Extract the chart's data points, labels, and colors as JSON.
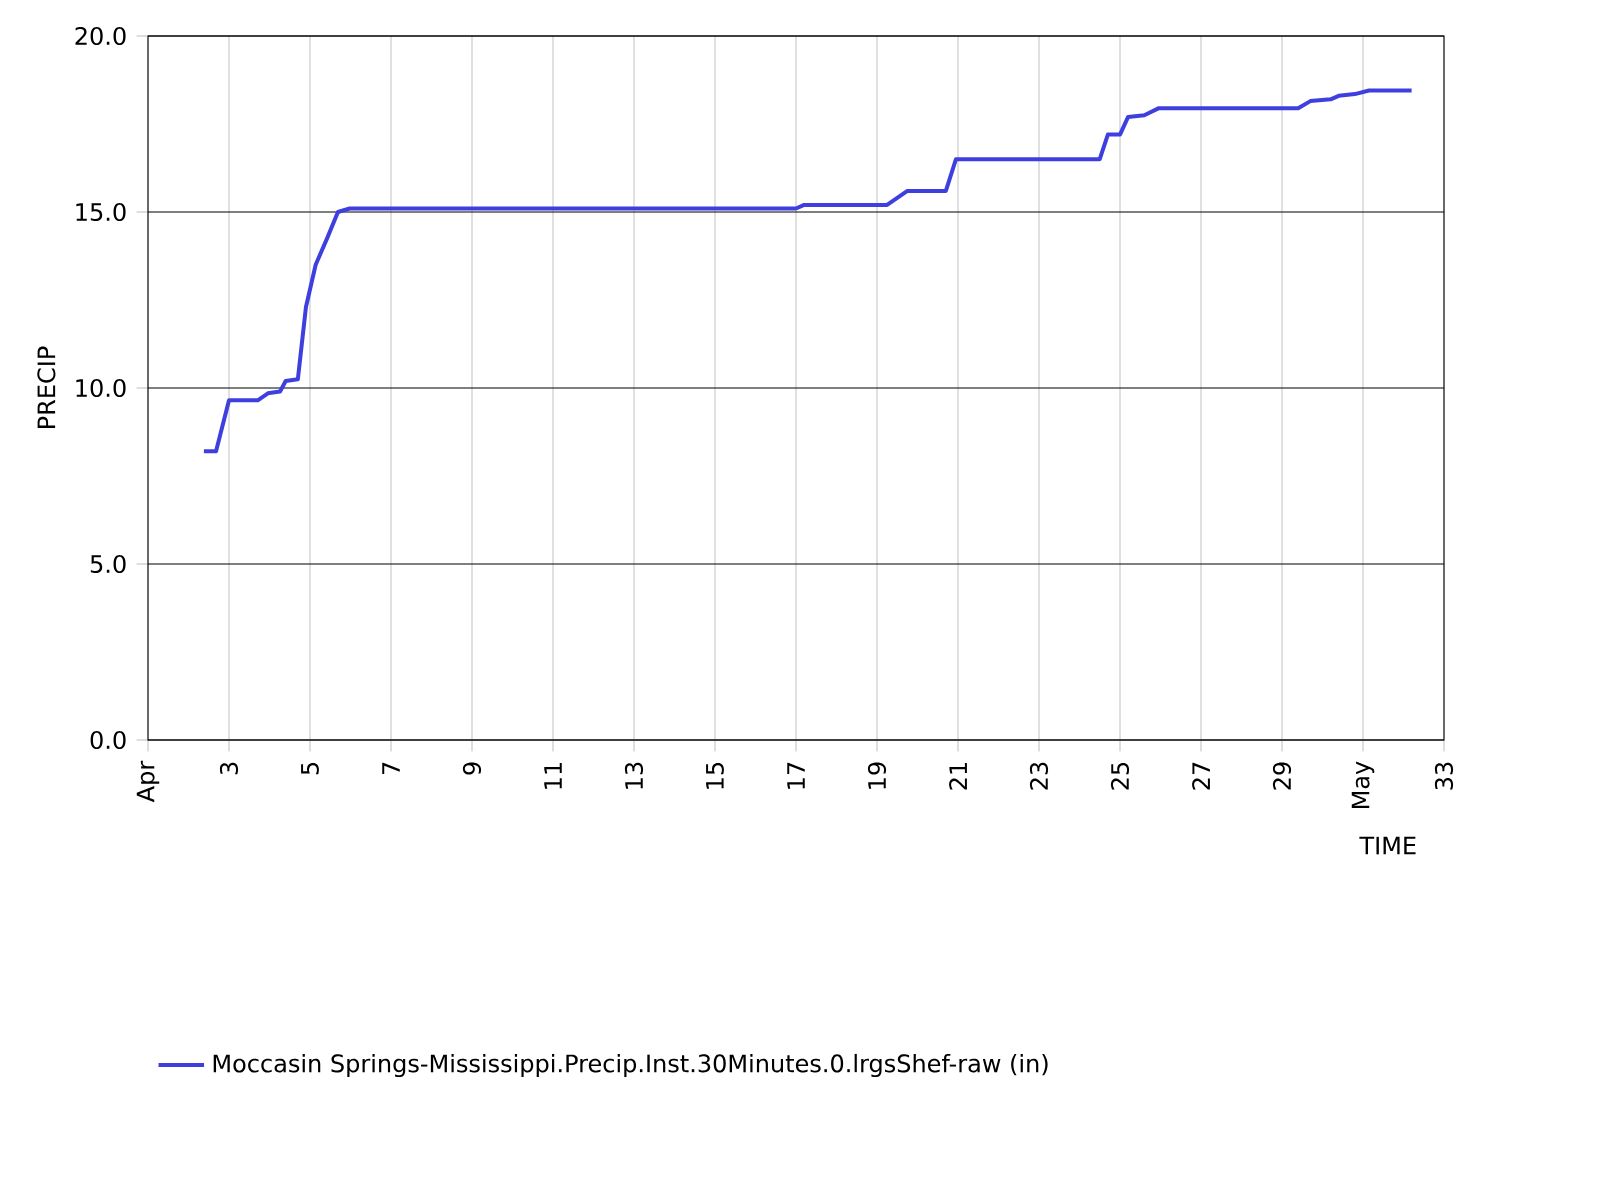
{
  "chart_data": {
    "type": "line",
    "xlabel": "TIME",
    "ylabel": "PRECIP",
    "x": [
      2.38,
      2.68,
      3.0,
      3.71,
      3.96,
      4.26,
      4.4,
      4.7,
      4.9,
      5.14,
      5.44,
      5.69,
      5.98,
      17.0,
      17.2,
      19.25,
      19.75,
      20.7,
      20.95,
      24.5,
      24.7,
      25.0,
      25.2,
      25.6,
      25.96,
      29.4,
      29.7,
      30.2,
      30.4,
      30.8,
      31.15,
      32.2
    ],
    "series": [
      {
        "name": "Moccasin Springs-Mississippi.Precip.Inst.30Minutes.0.lrgsShef-raw (in)",
        "color": "#3f3fe0",
        "values": [
          8.2,
          8.2,
          9.65,
          9.65,
          9.85,
          9.9,
          10.2,
          10.25,
          12.3,
          13.5,
          14.3,
          15.0,
          15.1,
          15.1,
          15.2,
          15.2,
          15.6,
          15.6,
          16.5,
          16.5,
          17.2,
          17.2,
          17.7,
          17.75,
          17.95,
          17.95,
          18.15,
          18.2,
          18.3,
          18.35,
          18.45,
          18.45
        ]
      }
    ],
    "xlim": [
      1,
      33
    ],
    "xticks": [
      {
        "value": 1,
        "label": "Apr"
      },
      3,
      5,
      7,
      9,
      11,
      13,
      15,
      17,
      19,
      21,
      23,
      25,
      27,
      29,
      {
        "value": 31,
        "label": "May"
      },
      33
    ],
    "ylim": [
      0,
      20
    ],
    "yticks": [
      {
        "value": 0,
        "label": "0.0"
      },
      {
        "value": 5,
        "label": "5.0"
      },
      {
        "value": 10,
        "label": "10.0"
      },
      {
        "value": 15,
        "label": "15.0"
      },
      {
        "value": 20,
        "label": "20.0"
      }
    ],
    "grid": true,
    "legend": "bottom",
    "line_style": "solid",
    "marker": "none"
  }
}
